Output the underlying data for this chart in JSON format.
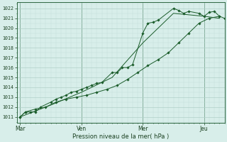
{
  "xlabel": "Pression niveau de la mer( hPa )",
  "bg_color": "#d8eeea",
  "plot_bg_color": "#d8eeea",
  "grid_major_color": "#b0d0c8",
  "grid_minor_color": "#c4ddd8",
  "line_color": "#1a5c2a",
  "ylim": [
    1010.4,
    1022.6
  ],
  "yticks": [
    1011,
    1012,
    1013,
    1014,
    1015,
    1016,
    1017,
    1018,
    1019,
    1020,
    1021,
    1022
  ],
  "xtick_labels": [
    "Mar",
    "Ven",
    "Mer",
    "Jeu"
  ],
  "xtick_positions": [
    0,
    36,
    72,
    108
  ],
  "xlim": [
    -2,
    120
  ],
  "line1_x": [
    0,
    3,
    6,
    9,
    12,
    18,
    21,
    24,
    27,
    30,
    33,
    36,
    39,
    42,
    45,
    48,
    54,
    57,
    60,
    63,
    66,
    72,
    75,
    78,
    81,
    90,
    93,
    96,
    99,
    105,
    108,
    111,
    114,
    117,
    120
  ],
  "line1_y": [
    1011.0,
    1011.5,
    1011.5,
    1011.5,
    1012.0,
    1012.5,
    1012.8,
    1013.0,
    1013.2,
    1013.5,
    1013.6,
    1013.8,
    1014.0,
    1014.2,
    1014.4,
    1014.5,
    1015.5,
    1015.5,
    1016.0,
    1016.0,
    1016.3,
    1019.5,
    1020.5,
    1020.6,
    1020.8,
    1022.0,
    1021.8,
    1021.5,
    1021.7,
    1021.5,
    1021.2,
    1021.6,
    1021.7,
    1021.2,
    1021.0
  ],
  "line2_x": [
    0,
    3,
    9,
    15,
    21,
    27,
    33,
    39,
    45,
    51,
    57,
    63,
    69,
    75,
    81,
    87,
    93,
    99,
    105,
    111,
    117
  ],
  "line2_y": [
    1011.0,
    1011.5,
    1011.8,
    1012.0,
    1012.5,
    1012.8,
    1013.0,
    1013.2,
    1013.5,
    1013.8,
    1014.2,
    1014.8,
    1015.5,
    1016.2,
    1016.8,
    1017.5,
    1018.5,
    1019.5,
    1020.5,
    1021.0,
    1021.2
  ],
  "line3_x": [
    0,
    18,
    36,
    54,
    72,
    90,
    108,
    117
  ],
  "line3_y": [
    1011.0,
    1012.2,
    1013.5,
    1015.0,
    1018.5,
    1021.5,
    1021.2,
    1021.0
  ],
  "vline_positions": [
    0,
    36,
    72,
    108
  ],
  "markersize": 1.8,
  "lw": 0.7,
  "xlabel_fontsize": 6.0,
  "ytick_fontsize": 4.8,
  "xtick_fontsize": 5.5
}
